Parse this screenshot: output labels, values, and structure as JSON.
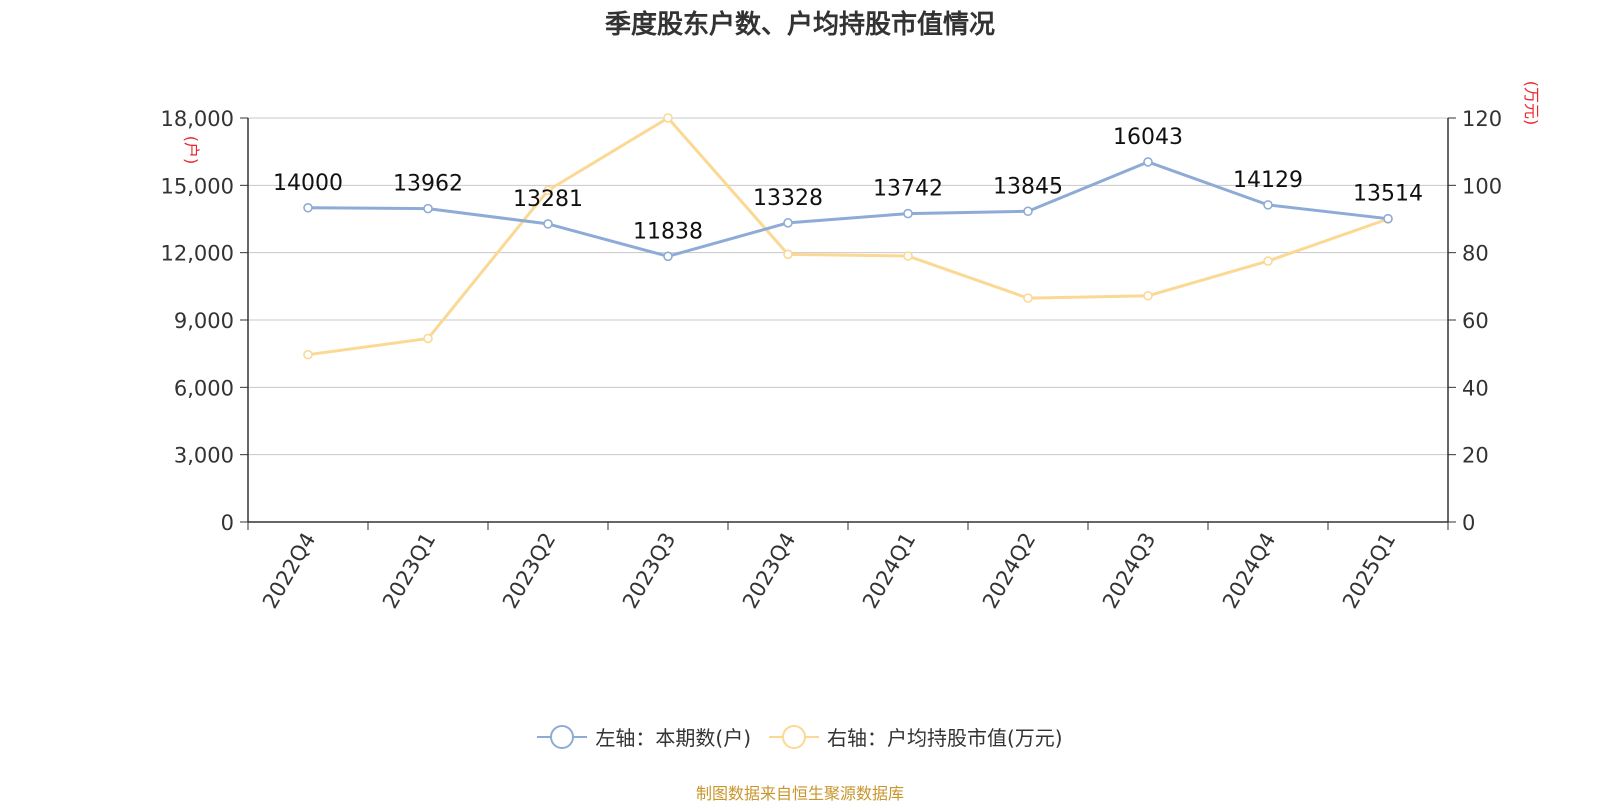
{
  "chart_data": {
    "type": "line",
    "title": "季度股东户数、户均持股市值情况",
    "categories": [
      "2022Q4",
      "2023Q1",
      "2023Q2",
      "2023Q3",
      "2023Q4",
      "2024Q1",
      "2024Q2",
      "2024Q3",
      "2024Q4",
      "2025Q1"
    ],
    "y_left": {
      "unit_label": "(户)",
      "range": [
        0,
        18000
      ],
      "ticks": [
        0,
        3000,
        6000,
        9000,
        12000,
        15000,
        18000
      ],
      "tick_labels": [
        "0",
        "3,000",
        "6,000",
        "9,000",
        "12,000",
        "15,000",
        "18,000"
      ]
    },
    "y_right": {
      "unit_label": "(万元)",
      "range": [
        0,
        120
      ],
      "ticks": [
        0,
        20,
        40,
        60,
        80,
        100,
        120
      ],
      "tick_labels": [
        "0",
        "20",
        "40",
        "60",
        "80",
        "100",
        "120"
      ]
    },
    "series": [
      {
        "name": "左轴：本期数(户)",
        "axis": "left",
        "color": "#8eabd8",
        "values": [
          14000,
          13962,
          13281,
          11838,
          13328,
          13742,
          13845,
          16043,
          14129,
          13514
        ],
        "data_labels": [
          "14000",
          "13962",
          "13281",
          "11838",
          "13328",
          "13742",
          "13845",
          "16043",
          "14129",
          "13514"
        ]
      },
      {
        "name": "右轴：户均持股市值(万元)",
        "axis": "right",
        "color": "#fbd994",
        "values": [
          49.7,
          54.5,
          98.5,
          120.0,
          79.5,
          79.0,
          66.5,
          67.2,
          77.5,
          90.0
        ]
      }
    ],
    "grid": true,
    "legend_position": "bottom-center"
  },
  "colors": {
    "axis_unit_label": "#e8262b",
    "grid": "#c8c8c8",
    "axis": "#333333",
    "source_text": "#c8962c"
  },
  "source": "制图数据来自恒生聚源数据库"
}
